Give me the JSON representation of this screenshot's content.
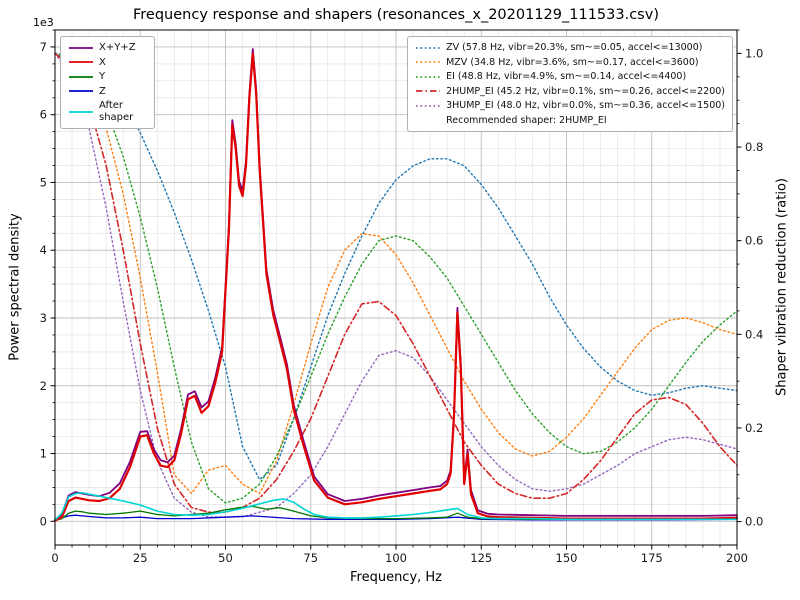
{
  "title": "Frequency response and shapers (resonances_x_20201129_111533.csv)",
  "axes": {
    "x": {
      "label": "Frequency, Hz",
      "min": 0,
      "max": 200,
      "major_ticks": [
        0,
        25,
        50,
        75,
        100,
        125,
        150,
        175,
        200
      ],
      "minor_step": 5
    },
    "y_left": {
      "label": "Power spectral density",
      "offset_text": "1e3",
      "min": -0.35,
      "max": 7.25,
      "major_ticks": [
        0,
        1,
        2,
        3,
        4,
        5,
        6,
        7
      ],
      "minor_step": 0.25
    },
    "y_right": {
      "label": "Shaper vibration reduction (ratio)",
      "min": -0.05,
      "max": 1.05,
      "major_ticks": [
        "0.0",
        "0.2",
        "0.4",
        "0.6",
        "0.8",
        "1.0"
      ],
      "minor_step": 0.05
    }
  },
  "legend_psd": {
    "entries": [
      {
        "label": "X+Y+Z",
        "color": "#800080",
        "style": "solid"
      },
      {
        "label": "X",
        "color": "#e00000",
        "style": "solid"
      },
      {
        "label": "Y",
        "color": "#007800",
        "style": "solid"
      },
      {
        "label": "Z",
        "color": "#0000cc",
        "style": "solid"
      },
      {
        "label": "After shaper",
        "color": "#00d5d5",
        "style": "solid"
      }
    ]
  },
  "legend_shapers": {
    "entries": [
      {
        "label": "ZV (57.8 Hz, vibr=20.3%, sm~=0.05, accel<=13000)",
        "color": "#1f77b4",
        "style": "dotted"
      },
      {
        "label": "MZV (34.8 Hz, vibr=3.6%, sm~=0.17, accel<=3600)",
        "color": "#ff7f0e",
        "style": "dotted"
      },
      {
        "label": "EI (48.8 Hz, vibr=4.9%, sm~=0.14, accel<=4400)",
        "color": "#2ca02c",
        "style": "dotted"
      },
      {
        "label": "2HUMP_EI (45.2 Hz, vibr=0.1%, sm~=0.26, accel<=2200)",
        "color": "#d62728",
        "style": "dashdot"
      },
      {
        "label": "3HUMP_EI (48.0 Hz, vibr=0.0%, sm~=0.36, accel<=1500)",
        "color": "#9467bd",
        "style": "dotted"
      }
    ],
    "footer": "Recommended shaper: 2HUMP_EI"
  },
  "chart_data": {
    "type": "line",
    "title": "Frequency response and shapers (resonances_x_20201129_111533.csv)",
    "xlabel": "Frequency, Hz",
    "ylabel_left": "Power spectral density (1e3)",
    "ylabel_right": "Shaper vibration reduction (ratio)",
    "xlim": [
      0,
      200
    ],
    "recommended_shaper": "2HUMP_EI",
    "shared_x": [
      0,
      5,
      10,
      15,
      20,
      25,
      30,
      35,
      40,
      45,
      50,
      55,
      60,
      65,
      70,
      75,
      80,
      85,
      90,
      95,
      100,
      105,
      110,
      115,
      120,
      125,
      130,
      135,
      140,
      145,
      150,
      155,
      160,
      165,
      170,
      175,
      180,
      185,
      190,
      195,
      200
    ],
    "series": [
      {
        "name": "ZV",
        "axis": "right",
        "color": "#1f77b4",
        "style": "dotted",
        "width": 1.4,
        "y": [
          1.0,
          0.995,
          0.98,
          0.95,
          0.9,
          0.83,
          0.75,
          0.66,
          0.56,
          0.45,
          0.33,
          0.16,
          0.09,
          0.12,
          0.22,
          0.33,
          0.44,
          0.53,
          0.61,
          0.68,
          0.73,
          0.76,
          0.775,
          0.775,
          0.76,
          0.72,
          0.67,
          0.61,
          0.55,
          0.48,
          0.42,
          0.37,
          0.33,
          0.3,
          0.28,
          0.27,
          0.275,
          0.285,
          0.29,
          0.285,
          0.28
        ]
      },
      {
        "name": "MZV",
        "axis": "right",
        "color": "#ff7f0e",
        "style": "dotted",
        "width": 1.4,
        "y": [
          1.0,
          0.98,
          0.93,
          0.84,
          0.7,
          0.52,
          0.32,
          0.1,
          0.06,
          0.11,
          0.12,
          0.08,
          0.06,
          0.13,
          0.25,
          0.38,
          0.5,
          0.58,
          0.615,
          0.61,
          0.57,
          0.51,
          0.44,
          0.37,
          0.3,
          0.24,
          0.19,
          0.155,
          0.14,
          0.15,
          0.18,
          0.22,
          0.27,
          0.32,
          0.37,
          0.41,
          0.43,
          0.435,
          0.425,
          0.41,
          0.4
        ]
      },
      {
        "name": "EI",
        "axis": "right",
        "color": "#2ca02c",
        "style": "dotted",
        "width": 1.4,
        "y": [
          1.0,
          0.985,
          0.945,
          0.88,
          0.78,
          0.65,
          0.5,
          0.33,
          0.17,
          0.07,
          0.04,
          0.05,
          0.08,
          0.14,
          0.22,
          0.31,
          0.4,
          0.48,
          0.55,
          0.6,
          0.61,
          0.6,
          0.565,
          0.52,
          0.46,
          0.4,
          0.34,
          0.28,
          0.23,
          0.19,
          0.16,
          0.145,
          0.15,
          0.17,
          0.2,
          0.24,
          0.29,
          0.34,
          0.385,
          0.42,
          0.45
        ]
      },
      {
        "name": "3HUMP_EI",
        "axis": "right",
        "color": "#9467bd",
        "style": "dotted",
        "width": 1.4,
        "y": [
          1.0,
          0.95,
          0.84,
          0.67,
          0.47,
          0.28,
          0.13,
          0.05,
          0.02,
          0.01,
          0.01,
          0.01,
          0.02,
          0.03,
          0.06,
          0.1,
          0.16,
          0.23,
          0.3,
          0.355,
          0.365,
          0.35,
          0.31,
          0.26,
          0.21,
          0.16,
          0.12,
          0.09,
          0.07,
          0.065,
          0.07,
          0.08,
          0.1,
          0.12,
          0.145,
          0.16,
          0.175,
          0.18,
          0.175,
          0.165,
          0.155
        ]
      },
      {
        "name": "2HUMP_EI",
        "axis": "right",
        "color": "#d62728",
        "style": "dashdot",
        "width": 1.6,
        "y": [
          1.0,
          0.97,
          0.89,
          0.76,
          0.58,
          0.38,
          0.2,
          0.08,
          0.03,
          0.02,
          0.02,
          0.03,
          0.05,
          0.09,
          0.15,
          0.22,
          0.31,
          0.4,
          0.465,
          0.47,
          0.44,
          0.38,
          0.31,
          0.24,
          0.17,
          0.12,
          0.08,
          0.06,
          0.05,
          0.05,
          0.06,
          0.09,
          0.13,
          0.18,
          0.23,
          0.26,
          0.265,
          0.25,
          0.21,
          0.16,
          0.12
        ]
      },
      {
        "name": "Z",
        "axis": "left",
        "color": "#0000cc",
        "style": "solid",
        "width": 1.3,
        "x": [
          0,
          2,
          4,
          6,
          8,
          10,
          15,
          20,
          25,
          30,
          40,
          50,
          58,
          70,
          80,
          90,
          100,
          110,
          118,
          125,
          140,
          160,
          180,
          200
        ],
        "y": [
          0.01,
          0.05,
          0.08,
          0.09,
          0.08,
          0.07,
          0.05,
          0.05,
          0.06,
          0.04,
          0.04,
          0.06,
          0.08,
          0.04,
          0.03,
          0.03,
          0.03,
          0.04,
          0.06,
          0.03,
          0.02,
          0.02,
          0.02,
          0.03
        ]
      },
      {
        "name": "Y",
        "axis": "left",
        "color": "#007800",
        "style": "solid",
        "width": 1.3,
        "x": [
          0,
          2,
          4,
          6,
          8,
          10,
          15,
          20,
          25,
          30,
          35,
          40,
          45,
          50,
          54,
          58,
          62,
          66,
          70,
          75,
          80,
          90,
          100,
          110,
          115,
          118,
          121,
          125,
          140,
          160,
          180,
          200
        ],
        "y": [
          0.01,
          0.04,
          0.12,
          0.15,
          0.14,
          0.12,
          0.1,
          0.12,
          0.15,
          0.1,
          0.08,
          0.1,
          0.12,
          0.17,
          0.2,
          0.22,
          0.18,
          0.2,
          0.15,
          0.08,
          0.05,
          0.04,
          0.04,
          0.05,
          0.06,
          0.12,
          0.06,
          0.04,
          0.03,
          0.03,
          0.03,
          0.03
        ]
      },
      {
        "name": "X+Y+Z",
        "axis": "left",
        "color": "#800080",
        "style": "solid",
        "width": 1.8,
        "x": [
          0,
          2,
          4,
          6,
          8,
          10,
          13,
          16,
          19,
          22,
          25,
          27,
          29,
          31,
          33,
          35,
          37,
          39,
          41,
          43,
          45,
          47,
          49,
          51,
          52,
          53,
          54,
          55,
          56,
          57,
          58,
          59,
          60,
          62,
          64,
          66,
          68,
          70,
          73,
          76,
          80,
          85,
          90,
          95,
          100,
          105,
          110,
          113,
          115,
          116,
          117,
          118,
          119,
          120,
          121,
          122,
          124,
          127,
          130,
          140,
          150,
          160,
          170,
          180,
          190,
          200
        ],
        "y": [
          0.02,
          0.1,
          0.38,
          0.43,
          0.41,
          0.39,
          0.37,
          0.42,
          0.56,
          0.88,
          1.32,
          1.33,
          1.06,
          0.9,
          0.87,
          0.97,
          1.37,
          1.87,
          1.92,
          1.68,
          1.77,
          2.12,
          2.57,
          4.37,
          5.92,
          5.57,
          5.02,
          4.88,
          5.32,
          6.32,
          6.97,
          6.37,
          5.27,
          3.72,
          3.12,
          2.72,
          2.32,
          1.72,
          1.17,
          0.66,
          0.4,
          0.3,
          0.33,
          0.38,
          0.42,
          0.46,
          0.5,
          0.52,
          0.6,
          0.75,
          1.6,
          3.15,
          2.32,
          0.62,
          1.06,
          0.46,
          0.16,
          0.11,
          0.1,
          0.09,
          0.08,
          0.08,
          0.08,
          0.08,
          0.08,
          0.09
        ]
      },
      {
        "name": "X",
        "axis": "left",
        "color": "#e00000",
        "style": "solid",
        "width": 2.2,
        "x": [
          0,
          2,
          4,
          6,
          8,
          10,
          13,
          16,
          19,
          22,
          25,
          27,
          29,
          31,
          33,
          35,
          37,
          39,
          41,
          43,
          45,
          47,
          49,
          51,
          52,
          53,
          54,
          55,
          56,
          57,
          58,
          59,
          60,
          62,
          64,
          66,
          68,
          70,
          73,
          76,
          80,
          85,
          90,
          95,
          100,
          105,
          110,
          113,
          115,
          116,
          117,
          118,
          119,
          120,
          121,
          122,
          124,
          127,
          130,
          140,
          150,
          160,
          170,
          180,
          190,
          200
        ],
        "y": [
          0.01,
          0.06,
          0.3,
          0.35,
          0.33,
          0.31,
          0.3,
          0.34,
          0.48,
          0.8,
          1.25,
          1.27,
          1.0,
          0.82,
          0.8,
          0.9,
          1.3,
          1.8,
          1.85,
          1.6,
          1.7,
          2.05,
          2.5,
          4.3,
          5.85,
          5.5,
          4.95,
          4.8,
          5.25,
          6.25,
          6.9,
          6.3,
          5.2,
          3.65,
          3.05,
          2.65,
          2.25,
          1.65,
          1.1,
          0.6,
          0.35,
          0.25,
          0.28,
          0.33,
          0.37,
          0.41,
          0.45,
          0.47,
          0.55,
          0.7,
          1.55,
          3.08,
          2.25,
          0.55,
          1.0,
          0.4,
          0.12,
          0.07,
          0.06,
          0.05,
          0.04,
          0.04,
          0.04,
          0.04,
          0.04,
          0.05
        ]
      },
      {
        "name": "After shaper",
        "axis": "left",
        "color": "#00d5d5",
        "style": "solid",
        "width": 1.6,
        "x": [
          0,
          2,
          4,
          6,
          8,
          10,
          13,
          16,
          20,
          25,
          30,
          35,
          40,
          45,
          50,
          54,
          58,
          61,
          64,
          67,
          70,
          73,
          76,
          80,
          85,
          90,
          95,
          100,
          105,
          110,
          114,
          118,
          121,
          125,
          130,
          140,
          150,
          160,
          170,
          180,
          190,
          200
        ],
        "y": [
          0.02,
          0.12,
          0.36,
          0.41,
          0.42,
          0.4,
          0.37,
          0.34,
          0.3,
          0.24,
          0.15,
          0.1,
          0.09,
          0.1,
          0.14,
          0.18,
          0.23,
          0.27,
          0.31,
          0.33,
          0.28,
          0.18,
          0.1,
          0.06,
          0.05,
          0.05,
          0.06,
          0.08,
          0.1,
          0.13,
          0.16,
          0.19,
          0.1,
          0.05,
          0.04,
          0.04,
          0.03,
          0.03,
          0.03,
          0.03,
          0.03,
          0.03
        ]
      }
    ]
  }
}
